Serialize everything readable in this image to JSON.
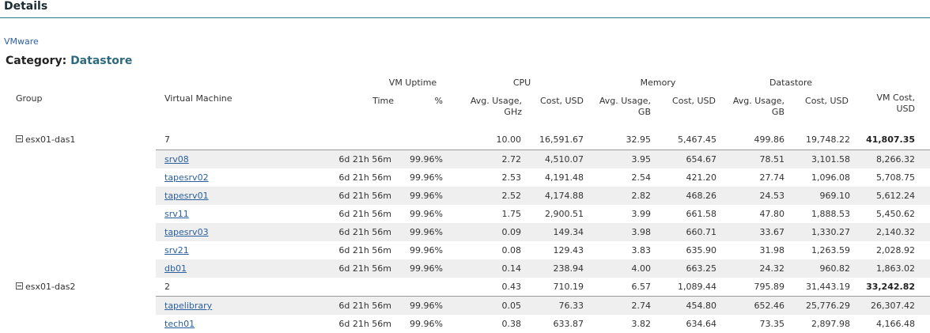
{
  "title": "Details",
  "vendor": "VMware",
  "category": {
    "label": "Category:",
    "value": "Datastore"
  },
  "headers": {
    "group": "Group",
    "vm": "Virtual Machine",
    "uptime": "VM Uptime",
    "time": "Time",
    "pct": "%",
    "cpu": "CPU",
    "cpu_avg": "Avg. Usage,\nGHz",
    "cpu_cost": "Cost, USD",
    "memory": "Memory",
    "mem_avg": "Avg. Usage,\nGB",
    "mem_cost": "Cost, USD",
    "datastore": "Datastore",
    "ds_avg": "Avg. Usage,\nGB",
    "ds_cost": "Cost, USD",
    "vm_cost": "VM Cost,\nUSD"
  },
  "groups": [
    {
      "name": "esx01-das1",
      "count": "7",
      "cpu_avg": "10.00",
      "cpu_cost": "16,591.67",
      "mem_avg": "32.95",
      "mem_cost": "5,467.45",
      "ds_avg": "499.86",
      "ds_cost": "19,748.22",
      "vm_cost": "41,807.35",
      "rows": [
        {
          "vm": "srv08",
          "time": "6d 21h 56m",
          "pct": "99.96%",
          "cpu_avg": "2.72",
          "cpu_cost": "4,510.07",
          "mem_avg": "3.95",
          "mem_cost": "654.67",
          "ds_avg": "78.51",
          "ds_cost": "3,101.58",
          "vm_cost": "8,266.32"
        },
        {
          "vm": "tapesrv02",
          "time": "6d 21h 56m",
          "pct": "99.96%",
          "cpu_avg": "2.53",
          "cpu_cost": "4,191.48",
          "mem_avg": "2.54",
          "mem_cost": "421.20",
          "ds_avg": "27.74",
          "ds_cost": "1,096.08",
          "vm_cost": "5,708.75"
        },
        {
          "vm": "tapesrv01",
          "time": "6d 21h 56m",
          "pct": "99.96%",
          "cpu_avg": "2.52",
          "cpu_cost": "4,174.88",
          "mem_avg": "2.82",
          "mem_cost": "468.26",
          "ds_avg": "24.53",
          "ds_cost": "969.10",
          "vm_cost": "5,612.24"
        },
        {
          "vm": "srv11",
          "time": "6d 21h 56m",
          "pct": "99.96%",
          "cpu_avg": "1.75",
          "cpu_cost": "2,900.51",
          "mem_avg": "3.99",
          "mem_cost": "661.58",
          "ds_avg": "47.80",
          "ds_cost": "1,888.53",
          "vm_cost": "5,450.62"
        },
        {
          "vm": "tapesrv03",
          "time": "6d 21h 56m",
          "pct": "99.96%",
          "cpu_avg": "0.09",
          "cpu_cost": "149.34",
          "mem_avg": "3.98",
          "mem_cost": "660.71",
          "ds_avg": "33.67",
          "ds_cost": "1,330.27",
          "vm_cost": "2,140.32"
        },
        {
          "vm": "srv21",
          "time": "6d 21h 56m",
          "pct": "99.96%",
          "cpu_avg": "0.08",
          "cpu_cost": "129.43",
          "mem_avg": "3.83",
          "mem_cost": "635.90",
          "ds_avg": "31.98",
          "ds_cost": "1,263.59",
          "vm_cost": "2,028.92"
        },
        {
          "vm": "db01",
          "time": "6d 21h 56m",
          "pct": "99.96%",
          "cpu_avg": "0.14",
          "cpu_cost": "238.94",
          "mem_avg": "4.00",
          "mem_cost": "663.25",
          "ds_avg": "24.32",
          "ds_cost": "960.82",
          "vm_cost": "1,863.02"
        }
      ]
    },
    {
      "name": "esx01-das2",
      "count": "2",
      "cpu_avg": "0.43",
      "cpu_cost": "710.19",
      "mem_avg": "6.57",
      "mem_cost": "1,089.44",
      "ds_avg": "795.89",
      "ds_cost": "31,443.19",
      "vm_cost": "33,242.82",
      "rows": [
        {
          "vm": "tapelibrary",
          "time": "6d 21h 56m",
          "pct": "99.96%",
          "cpu_avg": "0.05",
          "cpu_cost": "76.33",
          "mem_avg": "2.74",
          "mem_cost": "454.80",
          "ds_avg": "652.46",
          "ds_cost": "25,776.29",
          "vm_cost": "26,307.42"
        },
        {
          "vm": "tech01",
          "time": "6d 21h 56m",
          "pct": "99.96%",
          "cpu_avg": "0.38",
          "cpu_cost": "633.87",
          "mem_avg": "3.82",
          "mem_cost": "634.64",
          "ds_avg": "73.35",
          "ds_cost": "2,897.98",
          "vm_cost": "4,166.48"
        }
      ]
    }
  ]
}
